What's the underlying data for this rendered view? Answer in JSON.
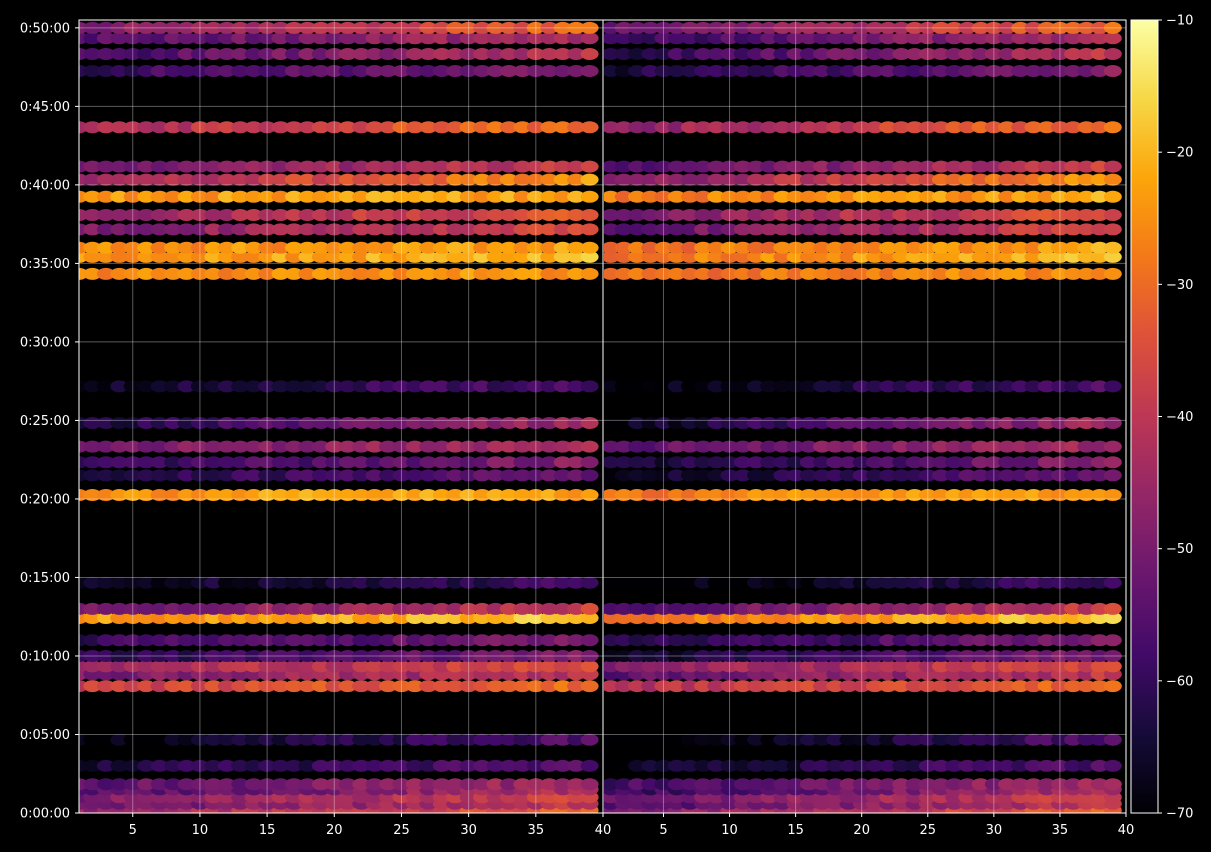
{
  "chart_data": {
    "type": "heatmap",
    "title": "",
    "xlabel": "",
    "ylabel": "",
    "colormap": "inferno",
    "background": "#000000",
    "grid": true,
    "colorbar": {
      "range": [
        -70,
        -10
      ],
      "ticks": [
        -70,
        -60,
        -50,
        -40,
        -30,
        -20,
        -10
      ],
      "tick_labels": [
        "−70",
        "−60",
        "−50",
        "−40",
        "−30",
        "−20",
        "−10"
      ]
    },
    "y_axis": {
      "range_seconds": [
        0,
        3030
      ],
      "ticks": [
        {
          "value": 0,
          "label": "0:00:00"
        },
        {
          "value": 300,
          "label": "0:05:00"
        },
        {
          "value": 600,
          "label": "0:10:00"
        },
        {
          "value": 900,
          "label": "0:15:00"
        },
        {
          "value": 1200,
          "label": "0:20:00"
        },
        {
          "value": 1500,
          "label": "0:25:00"
        },
        {
          "value": 1800,
          "label": "0:30:00"
        },
        {
          "value": 2100,
          "label": "0:35:00"
        },
        {
          "value": 2400,
          "label": "0:40:00"
        },
        {
          "value": 2700,
          "label": "0:45:00"
        },
        {
          "value": 3000,
          "label": "0:50:00"
        }
      ]
    },
    "panels": [
      {
        "name": "left",
        "xlim": [
          1,
          40
        ],
        "x_ticks": [
          5,
          10,
          15,
          20,
          25,
          30,
          35,
          40
        ],
        "x_tick_labels": [
          "5",
          "10",
          "15",
          "20",
          "25",
          "30",
          "35",
          "40"
        ]
      },
      {
        "name": "right",
        "xlim": [
          0.5,
          40
        ],
        "x_ticks": [
          5,
          10,
          15,
          20,
          25,
          30,
          35,
          40
        ],
        "x_tick_labels": [
          "5",
          "10",
          "15",
          "20",
          "25",
          "30",
          "35",
          "40"
        ]
      }
    ],
    "bands": [
      {
        "t": 10,
        "v0": -46,
        "v1": -32
      },
      {
        "t": 35,
        "v0": -52,
        "v1": -40
      },
      {
        "t": 60,
        "v0": -50,
        "v1": -36
      },
      {
        "t": 90,
        "v0": -56,
        "v1": -42
      },
      {
        "t": 110,
        "v0": -54,
        "v1": -44
      },
      {
        "t": 180,
        "v0": -64,
        "v1": -56
      },
      {
        "t": 280,
        "v0": -70,
        "v1": -56
      },
      {
        "t": 485,
        "v0": -38,
        "v1": -30
      },
      {
        "t": 530,
        "v0": -50,
        "v1": -40
      },
      {
        "t": 560,
        "v0": -44,
        "v1": -36
      },
      {
        "t": 600,
        "v0": -62,
        "v1": -50
      },
      {
        "t": 660,
        "v0": -60,
        "v1": -50
      },
      {
        "t": 745,
        "v0": -24,
        "v1": -18
      },
      {
        "t": 780,
        "v0": -52,
        "v1": -38
      },
      {
        "t": 880,
        "v0": -68,
        "v1": -58
      },
      {
        "t": 1215,
        "v0": -24,
        "v1": -22
      },
      {
        "t": 1290,
        "v0": -64,
        "v1": -52
      },
      {
        "t": 1340,
        "v0": -62,
        "v1": -48
      },
      {
        "t": 1400,
        "v0": -50,
        "v1": -44
      },
      {
        "t": 1490,
        "v0": -64,
        "v1": -44
      },
      {
        "t": 1630,
        "v0": -66,
        "v1": -56
      },
      {
        "t": 2060,
        "v0": -26,
        "v1": -24
      },
      {
        "t": 2125,
        "v0": -24,
        "v1": -20
      },
      {
        "t": 2160,
        "v0": -26,
        "v1": -22
      },
      {
        "t": 2230,
        "v0": -50,
        "v1": -36
      },
      {
        "t": 2285,
        "v0": -46,
        "v1": -34
      },
      {
        "t": 2355,
        "v0": -24,
        "v1": -22
      },
      {
        "t": 2420,
        "v0": -46,
        "v1": -24
      },
      {
        "t": 2470,
        "v0": -52,
        "v1": -38
      },
      {
        "t": 2620,
        "v0": -44,
        "v1": -28
      },
      {
        "t": 2835,
        "v0": -60,
        "v1": -48
      },
      {
        "t": 2900,
        "v0": -58,
        "v1": -40
      },
      {
        "t": 2960,
        "v0": -56,
        "v1": -42
      },
      {
        "t": 3000,
        "v0": -50,
        "v1": -30
      }
    ]
  }
}
